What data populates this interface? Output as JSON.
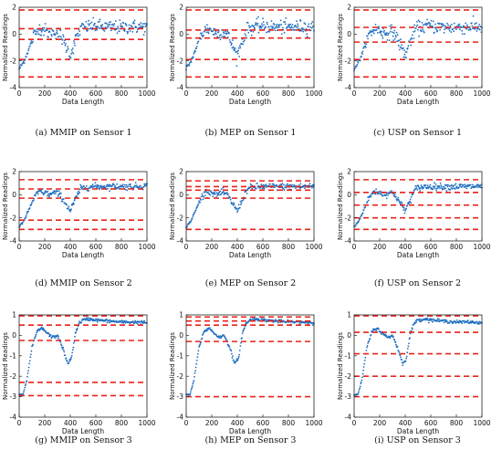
{
  "chart_data": [
    {
      "id": "a",
      "type": "scatter",
      "caption": "(a)  MMIP on Sensor 1",
      "sensor": 1,
      "xlabel": "Data Length",
      "ylabel": "Normalized Readings",
      "xlim": [
        0,
        1000
      ],
      "ylim": [
        -4,
        2
      ],
      "xticks": [
        0,
        200,
        400,
        600,
        800,
        1000
      ],
      "yticks": [
        -4,
        -2,
        0,
        2
      ],
      "thresholds": [
        1.8,
        0.4,
        -0.4,
        -1.9,
        -3.2
      ],
      "series_color": "#1f6fc0",
      "threshold_color": "#e8221b"
    },
    {
      "id": "b",
      "type": "scatter",
      "caption": "(b)  MEP on Sensor 1",
      "sensor": 1,
      "xlabel": "Data Length",
      "ylabel": "Normalized Readings",
      "xlim": [
        0,
        1000
      ],
      "ylim": [
        -4,
        2
      ],
      "xticks": [
        0,
        200,
        400,
        600,
        800,
        1000
      ],
      "yticks": [
        -4,
        -2,
        0,
        2
      ],
      "thresholds": [
        1.8,
        0.3,
        -0.3,
        -1.9,
        -3.2
      ],
      "series_color": "#1f6fc0",
      "threshold_color": "#e8221b"
    },
    {
      "id": "c",
      "type": "scatter",
      "caption": "(c)  USP on Sensor 1",
      "sensor": 1,
      "xlabel": "Data Length",
      "ylabel": "Normalized Readings",
      "xlim": [
        0,
        1000
      ],
      "ylim": [
        -4,
        2
      ],
      "xticks": [
        0,
        200,
        400,
        600,
        800,
        1000
      ],
      "yticks": [
        -4,
        -2,
        0,
        2
      ],
      "thresholds": [
        1.8,
        0.5,
        -0.6,
        -1.9,
        -3.2
      ],
      "series_color": "#1f6fc0",
      "threshold_color": "#e8221b"
    },
    {
      "id": "d",
      "type": "scatter",
      "caption": "(d)  MMIP on Sensor 2",
      "sensor": 2,
      "xlabel": "Data Length",
      "ylabel": "Normalized Readings",
      "xlim": [
        0,
        1000
      ],
      "ylim": [
        -4,
        2
      ],
      "xticks": [
        0,
        200,
        400,
        600,
        800,
        1000
      ],
      "yticks": [
        -4,
        -2,
        0,
        2
      ],
      "thresholds": [
        1.3,
        0.5,
        -0.3,
        -2.2,
        -3.0
      ],
      "series_color": "#1f6fc0",
      "threshold_color": "#e8221b"
    },
    {
      "id": "e",
      "type": "scatter",
      "caption": "(e)  MEP on Sensor 2",
      "sensor": 2,
      "xlabel": "Data Length",
      "ylabel": "Normalized Readings",
      "xlim": [
        0,
        1000
      ],
      "ylim": [
        -4,
        2
      ],
      "xticks": [
        0,
        200,
        400,
        600,
        800,
        1000
      ],
      "yticks": [
        -4,
        -2,
        0,
        2
      ],
      "thresholds": [
        1.2,
        0.7,
        0.4,
        -0.3,
        -3.0
      ],
      "series_color": "#1f6fc0",
      "threshold_color": "#e8221b"
    },
    {
      "id": "f",
      "type": "scatter",
      "caption": "(f)  USP on Sensor 2",
      "sensor": 2,
      "xlabel": "Data Length",
      "ylabel": "Normalized Readings",
      "xlim": [
        0,
        1000
      ],
      "ylim": [
        -4,
        2
      ],
      "xticks": [
        0,
        200,
        400,
        600,
        800,
        1000
      ],
      "yticks": [
        -4,
        -2,
        0,
        2
      ],
      "thresholds": [
        1.3,
        0.2,
        -0.9,
        -2.0,
        -3.0
      ],
      "series_color": "#1f6fc0",
      "threshold_color": "#e8221b"
    },
    {
      "id": "g",
      "type": "scatter",
      "caption": "(g)  MMIP on Sensor 3",
      "sensor": 3,
      "xlabel": "Data Length",
      "ylabel": "Normalized Readings",
      "xlim": [
        0,
        1000
      ],
      "ylim": [
        -4,
        1
      ],
      "xticks": [
        0,
        200,
        400,
        600,
        800,
        1000
      ],
      "yticks": [
        -4,
        -3,
        -2,
        -1,
        0,
        1
      ],
      "thresholds": [
        0.95,
        0.5,
        -0.25,
        -2.3,
        -2.95
      ],
      "series_color": "#1f6fc0",
      "threshold_color": "#e8221b"
    },
    {
      "id": "h",
      "type": "scatter",
      "caption": "(h)  MEP on Sensor 3",
      "sensor": 3,
      "xlabel": "Data Length",
      "ylabel": "Normalized Readings",
      "xlim": [
        0,
        1000
      ],
      "ylim": [
        -4,
        1
      ],
      "xticks": [
        0,
        200,
        400,
        600,
        800,
        1000
      ],
      "yticks": [
        -4,
        -3,
        -2,
        -1,
        0,
        1
      ],
      "thresholds": [
        0.9,
        0.7,
        0.5,
        -0.3,
        -3.0
      ],
      "series_color": "#1f6fc0",
      "threshold_color": "#e8221b"
    },
    {
      "id": "i",
      "type": "scatter",
      "caption": "(i)  USP on Sensor 3",
      "sensor": 3,
      "xlabel": "Data Length",
      "ylabel": "Normalized Readings",
      "xlim": [
        0,
        1000
      ],
      "ylim": [
        -4,
        1
      ],
      "xticks": [
        0,
        200,
        400,
        600,
        800,
        1000
      ],
      "yticks": [
        -4,
        -3,
        -2,
        -1,
        0,
        1
      ],
      "thresholds": [
        0.95,
        0.15,
        -0.9,
        -2.0,
        -3.0
      ],
      "series_color": "#1f6fc0",
      "threshold_color": "#e8221b"
    }
  ],
  "sensor_profiles": {
    "1": {
      "x": [
        0,
        40,
        80,
        120,
        160,
        200,
        240,
        280,
        320,
        360,
        400,
        440,
        480,
        520,
        560,
        600,
        700,
        800,
        900,
        1000
      ],
      "y": [
        -2.6,
        -2.0,
        -1.0,
        0.0,
        0.4,
        0.3,
        0.0,
        0.2,
        0.0,
        -0.8,
        -1.6,
        -0.5,
        0.4,
        0.5,
        0.6,
        0.6,
        0.5,
        0.5,
        0.55,
        0.5
      ],
      "noise": 0.45
    },
    "2": {
      "x": [
        0,
        40,
        80,
        120,
        160,
        200,
        240,
        280,
        320,
        360,
        400,
        440,
        480,
        520,
        560,
        600,
        700,
        800,
        900,
        1000
      ],
      "y": [
        -2.8,
        -2.2,
        -1.2,
        -0.2,
        0.3,
        0.2,
        0.0,
        0.2,
        0.0,
        -0.7,
        -1.4,
        -0.4,
        0.5,
        0.65,
        0.7,
        0.7,
        0.7,
        0.7,
        0.7,
        0.75
      ],
      "noise": 0.25
    },
    "3": {
      "x": [
        0,
        30,
        60,
        100,
        140,
        180,
        220,
        260,
        300,
        340,
        380,
        410,
        440,
        470,
        500,
        550,
        600,
        700,
        800,
        900,
        1000
      ],
      "y": [
        -2.9,
        -2.9,
        -2.2,
        -0.6,
        0.2,
        0.35,
        0.1,
        -0.1,
        0.0,
        -0.6,
        -1.4,
        -1.1,
        0.1,
        0.6,
        0.75,
        0.8,
        0.75,
        0.7,
        0.65,
        0.65,
        0.62
      ],
      "noise": 0.07
    }
  }
}
